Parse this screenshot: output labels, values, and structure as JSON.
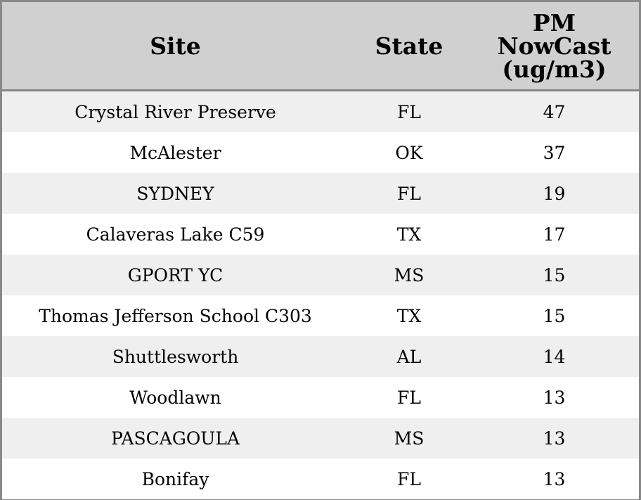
{
  "table": {
    "headers": {
      "site": "Site",
      "state": "State",
      "value_lines": [
        "PM",
        "NowCast",
        "(ug/m3)"
      ]
    },
    "rows": [
      {
        "site": "Crystal River Preserve",
        "state": "FL",
        "value": "47"
      },
      {
        "site": "McAlester",
        "state": "OK",
        "value": "37"
      },
      {
        "site": "SYDNEY",
        "state": "FL",
        "value": "19"
      },
      {
        "site": "Calaveras Lake C59",
        "state": "TX",
        "value": "17"
      },
      {
        "site": "GPORT YC",
        "state": "MS",
        "value": "15"
      },
      {
        "site": "Thomas Jefferson School C303",
        "state": "TX",
        "value": "15"
      },
      {
        "site": "Shuttlesworth",
        "state": "AL",
        "value": "14"
      },
      {
        "site": "Woodlawn",
        "state": "FL",
        "value": "13"
      },
      {
        "site": "PASCAGOULA",
        "state": "MS",
        "value": "13"
      },
      {
        "site": "Bonifay",
        "state": "FL",
        "value": "13"
      }
    ],
    "colors": {
      "header_bg": "#d0d0d0",
      "row_alt_bg": "#efefef",
      "row_bg": "#ffffff",
      "border": "#888888"
    }
  }
}
